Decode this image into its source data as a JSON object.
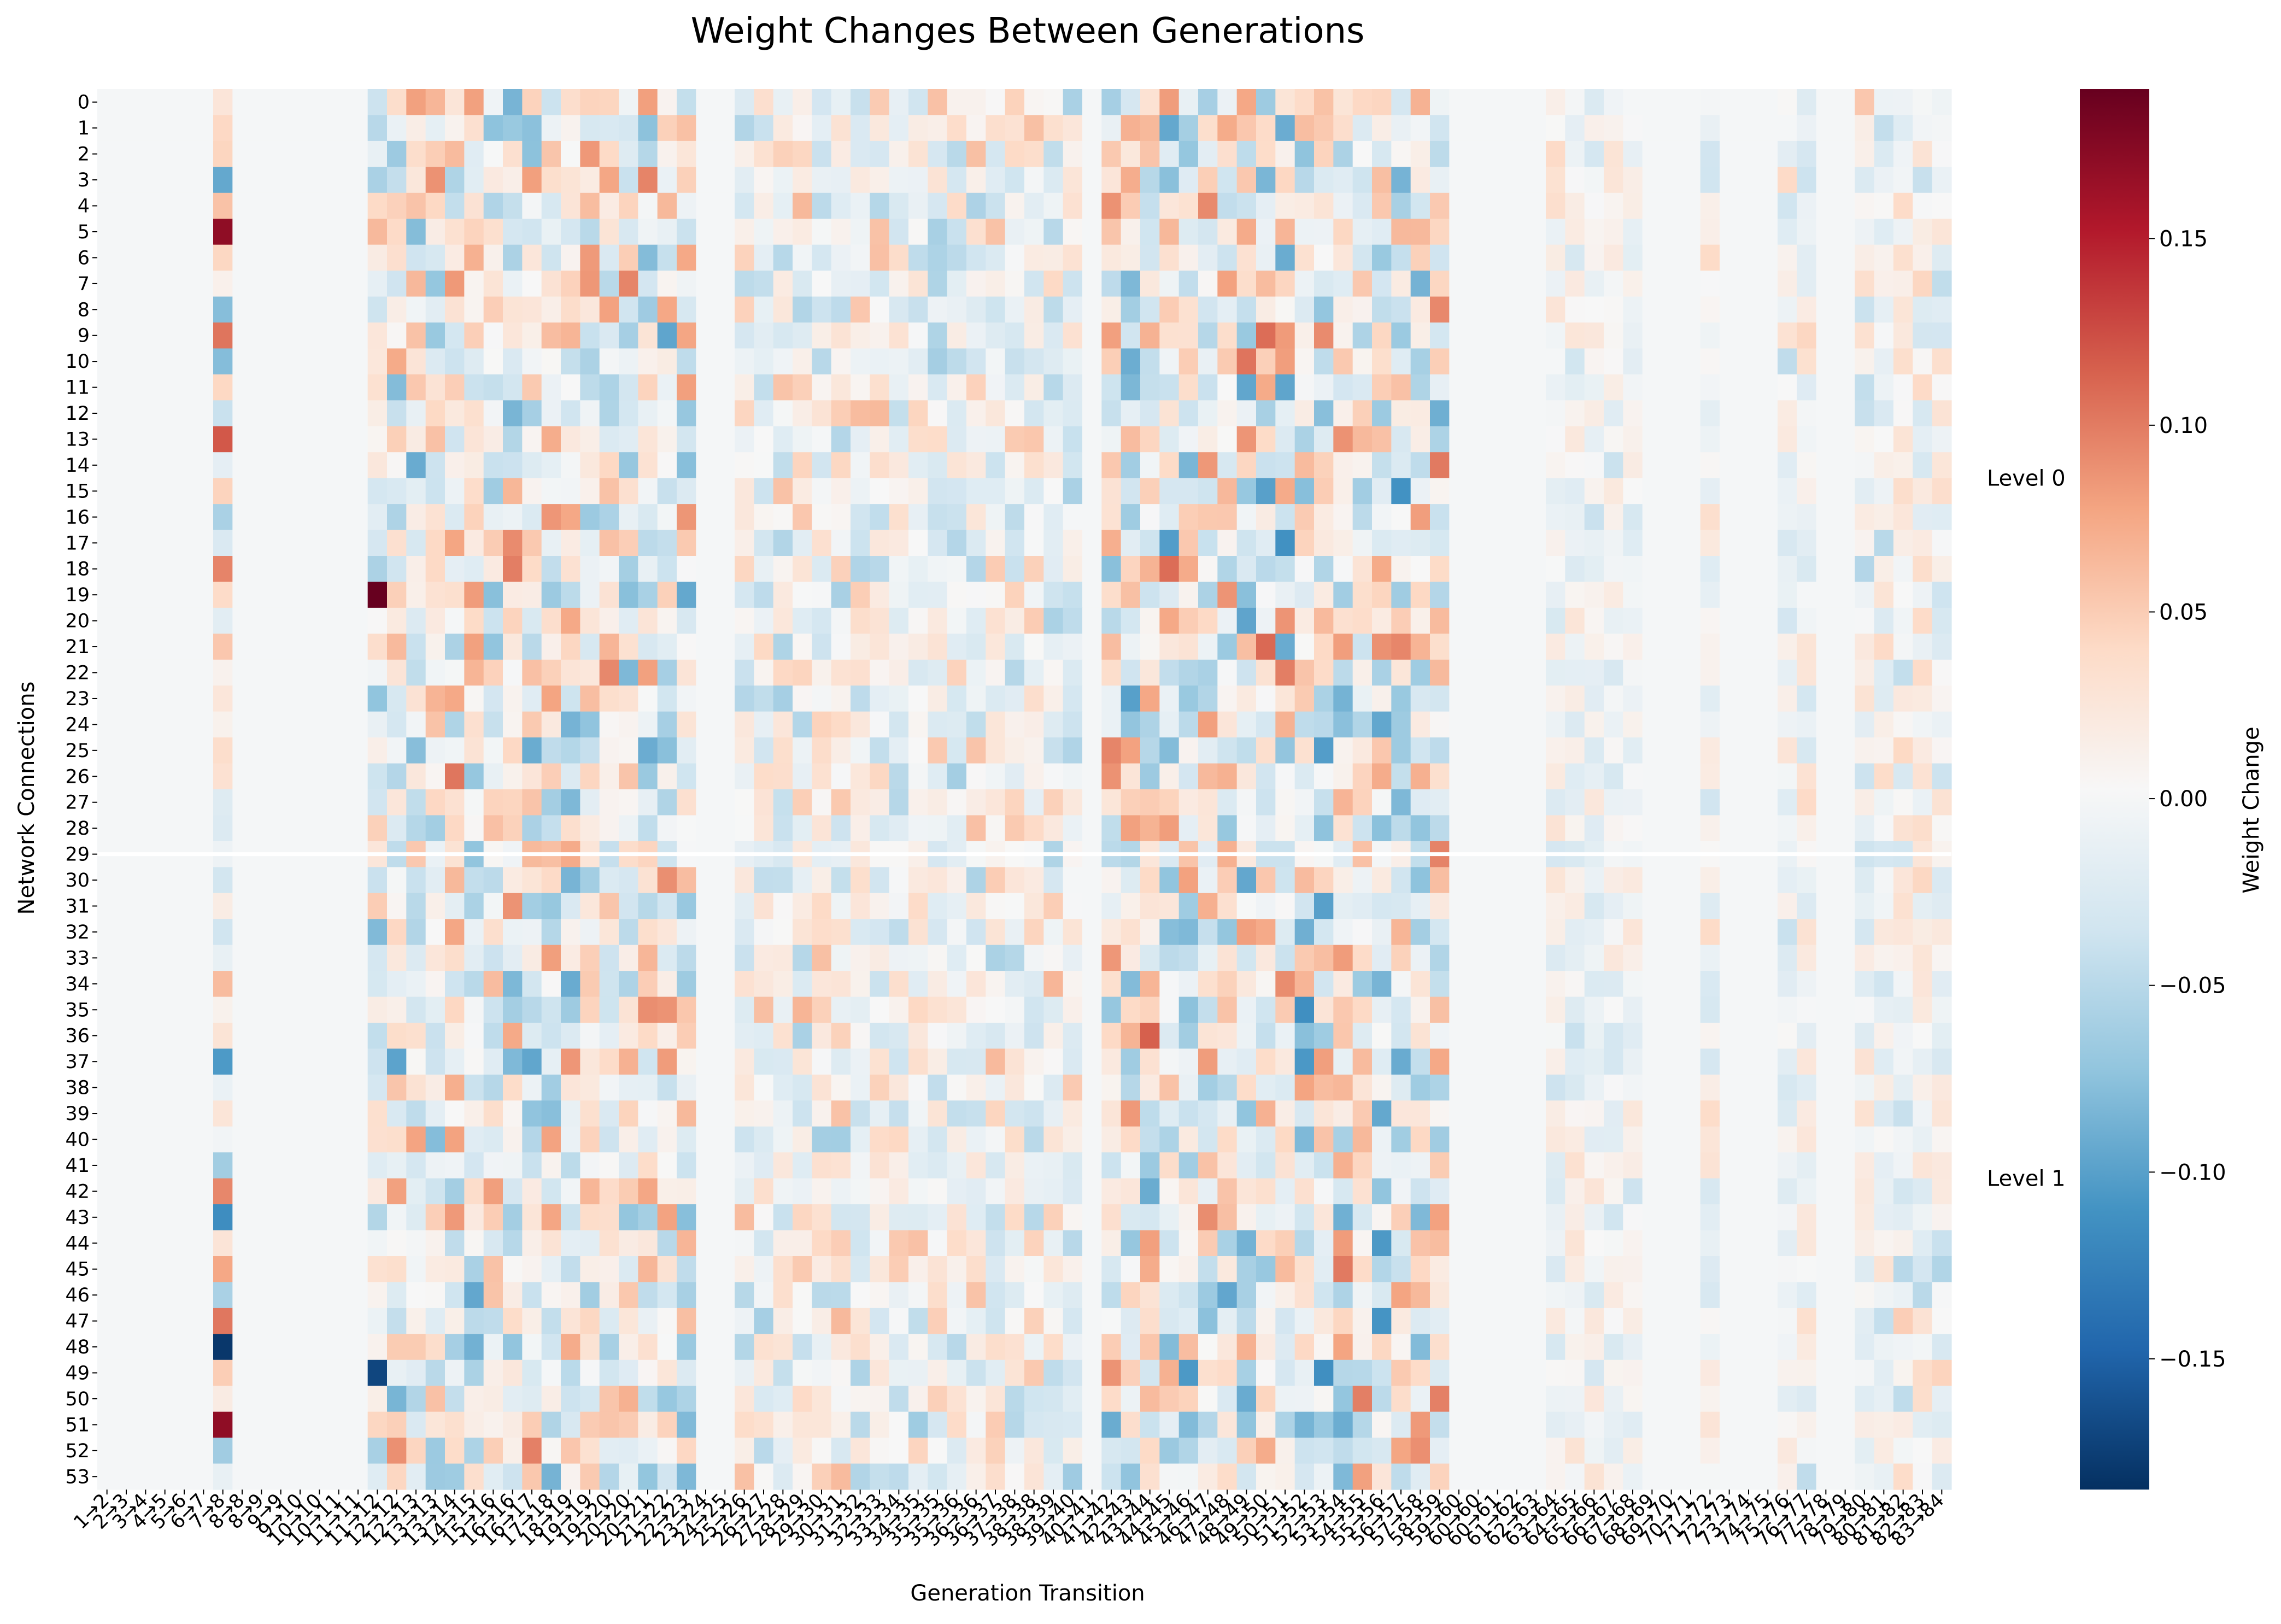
{
  "chart_data": {
    "type": "heatmap",
    "title": "Weight Changes Between Generations",
    "xlabel": "Generation Transition",
    "ylabel": "Network Connections",
    "colorbar_label": "Weight Change",
    "colormap": "RdBu_r",
    "vmin": -0.185,
    "vmax": 0.19,
    "colorbar_ticks": [
      "0.15",
      "0.10",
      "0.05",
      "0.00",
      "−0.05",
      "−0.10",
      "−0.15"
    ],
    "colorbar_tick_values": [
      0.15,
      0.1,
      0.05,
      0.0,
      -0.05,
      -0.1,
      -0.15
    ],
    "row_labels": [
      "0",
      "1",
      "2",
      "3",
      "4",
      "5",
      "6",
      "7",
      "8",
      "9",
      "10",
      "11",
      "12",
      "13",
      "14",
      "15",
      "16",
      "17",
      "18",
      "19",
      "20",
      "21",
      "22",
      "23",
      "24",
      "25",
      "26",
      "27",
      "28",
      "29",
      "30",
      "31",
      "32",
      "33",
      "34",
      "35",
      "36",
      "37",
      "38",
      "39",
      "40",
      "41",
      "42",
      "43",
      "44",
      "45",
      "46",
      "47",
      "48",
      "49",
      "50",
      "51",
      "52",
      "53"
    ],
    "column_labels": [
      "1→2",
      "2→3",
      "3→4",
      "4→5",
      "5→6",
      "6→7",
      "7→8",
      "8→8",
      "8→9",
      "9→9",
      "9→10",
      "10→10",
      "10→11",
      "11→11",
      "11→12",
      "12→12",
      "12→13",
      "13→13",
      "13→14",
      "14→15",
      "15→16",
      "16→16",
      "16→17",
      "17→18",
      "18→19",
      "19→19",
      "19→20",
      "20→20",
      "20→21",
      "21→22",
      "22→23",
      "23→24",
      "24→25",
      "25→26",
      "26→27",
      "27→28",
      "28→29",
      "29→30",
      "30→31",
      "31→32",
      "32→33",
      "33→34",
      "34→35",
      "35→35",
      "35→36",
      "36→36",
      "36→37",
      "37→38",
      "38→38",
      "38→39",
      "39→40",
      "40→41",
      "41→42",
      "42→43",
      "43→44",
      "44→45",
      "45→46",
      "46→47",
      "47→48",
      "48→49",
      "49→50",
      "50→51",
      "51→52",
      "52→53",
      "53→54",
      "54→55",
      "55→56",
      "56→57",
      "57→58",
      "58→59",
      "59→60",
      "60→60",
      "60→61",
      "61→62",
      "62→63",
      "63→64",
      "64→65",
      "65→66",
      "66→67",
      "67→68",
      "68→69",
      "69→70",
      "70→71",
      "71→72",
      "72→73",
      "73→74",
      "74→75",
      "75→76",
      "76→77",
      "77→78",
      "78→79",
      "79→80",
      "80→81",
      "81→82",
      "82→83",
      "83→84"
    ],
    "level_separator_after_row": 29,
    "level_labels": [
      {
        "label": "Level 0",
        "rows": [
          0,
          29
        ]
      },
      {
        "label": "Level 1",
        "rows": [
          30,
          53
        ]
      }
    ],
    "active_column_groups": [
      {
        "columns": [
          6
        ],
        "intensity": 0.13
      },
      {
        "columns": [
          14,
          15,
          16,
          17,
          18,
          19,
          20,
          21,
          22,
          23,
          24,
          25,
          26,
          27,
          28,
          29,
          30
        ],
        "intensity": 0.09
      },
      {
        "columns": [
          33,
          34,
          35,
          36,
          37,
          38,
          39,
          40,
          41,
          42,
          43,
          44,
          45,
          46,
          47,
          48,
          49,
          50
        ],
        "intensity": 0.06
      },
      {
        "columns": [
          52,
          53,
          54,
          55,
          56,
          57,
          58,
          59,
          60,
          61,
          62,
          63,
          64,
          65,
          66,
          67,
          68,
          69
        ],
        "intensity": 0.1
      },
      {
        "columns": [
          75,
          76,
          77,
          78,
          79
        ],
        "intensity": 0.035
      },
      {
        "columns": [
          83
        ],
        "intensity": 0.04
      },
      {
        "columns": [
          87,
          88
        ],
        "intensity": 0.045
      },
      {
        "columns": [
          91,
          92,
          93,
          94,
          95
        ],
        "intensity": 0.05
      },
      {
        "columns": [
          97,
          98,
          99,
          100,
          101,
          102
        ],
        "intensity": 0.04
      },
      {
        "columns": [
          104,
          105
        ],
        "intensity": 0.05
      },
      {
        "columns": [
          108,
          109,
          110,
          111,
          112,
          113,
          114
        ],
        "intensity": 0.05
      }
    ],
    "notable_values": [
      {
        "row": 19,
        "column": 14,
        "value": 0.19
      },
      {
        "row": 48,
        "column": 6,
        "value": -0.18
      },
      {
        "row": 49,
        "column": 14,
        "value": -0.17
      },
      {
        "row": 5,
        "column": 6,
        "value": 0.17
      },
      {
        "row": 51,
        "column": 6,
        "value": 0.17
      }
    ]
  }
}
